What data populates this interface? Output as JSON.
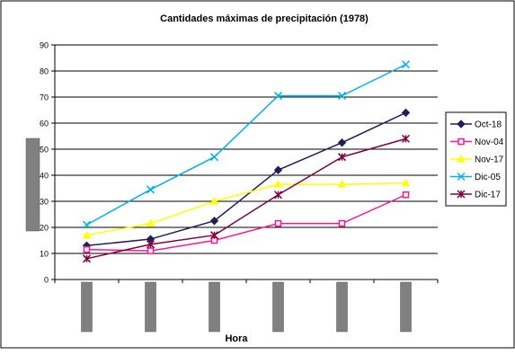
{
  "chart_data": {
    "type": "line",
    "title": "Cantidades máximas de precipitación (1978)",
    "xlabel": "Hora",
    "ylabel": "",
    "ylim": [
      0,
      90
    ],
    "yticks": [
      0,
      10,
      20,
      30,
      40,
      50,
      60,
      70,
      80,
      90
    ],
    "categories": [
      "",
      "",
      "",
      "",
      "",
      ""
    ],
    "grid": true,
    "legend_position": "right",
    "series": [
      {
        "name": "Oct-18",
        "color": "#1f1f5f",
        "marker": "diamond",
        "values": [
          13,
          15.5,
          22.5,
          42,
          52.5,
          64
        ]
      },
      {
        "name": "Nov-04",
        "color": "#ff1493",
        "marker": "square",
        "values": [
          11.5,
          11,
          15,
          21.5,
          21.5,
          32.5
        ]
      },
      {
        "name": "Nov-17",
        "color": "#ffff00",
        "marker": "triangle",
        "values": [
          17,
          21.5,
          30,
          36.5,
          36.5,
          37
        ]
      },
      {
        "name": "Dic-05",
        "color": "#00b0f0",
        "marker": "x",
        "values": [
          21,
          34.5,
          47,
          70.5,
          70.5,
          82.5
        ]
      },
      {
        "name": "Dic-17",
        "color": "#800040",
        "marker": "star",
        "values": [
          8,
          13.5,
          17,
          32.5,
          47,
          54
        ]
      }
    ]
  }
}
